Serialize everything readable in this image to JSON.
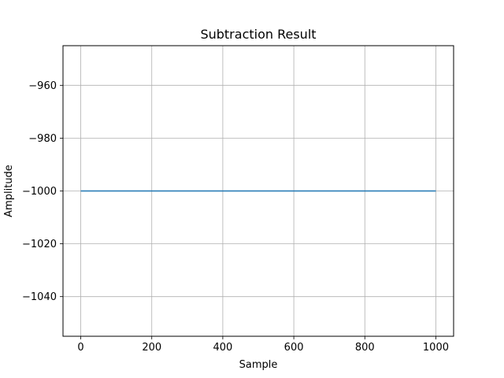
{
  "chart_data": {
    "type": "line",
    "title": "Subtraction Result",
    "xlabel": "Sample",
    "ylabel": "Amplitude",
    "xlim": [
      -50,
      1050
    ],
    "ylim": [
      -1055,
      -945
    ],
    "xticks": [
      0,
      200,
      400,
      600,
      800,
      1000
    ],
    "yticks": [
      -1040,
      -1020,
      -1000,
      -980,
      -960
    ],
    "xtick_labels": [
      "0",
      "200",
      "400",
      "600",
      "800",
      "1000"
    ],
    "ytick_labels": [
      "−1040",
      "−1020",
      "−1000",
      "−980",
      "−960"
    ],
    "grid": true,
    "series": [
      {
        "color": "#1f77b4",
        "x": [
          0,
          1000
        ],
        "y": [
          -1000,
          -1000
        ]
      }
    ]
  }
}
